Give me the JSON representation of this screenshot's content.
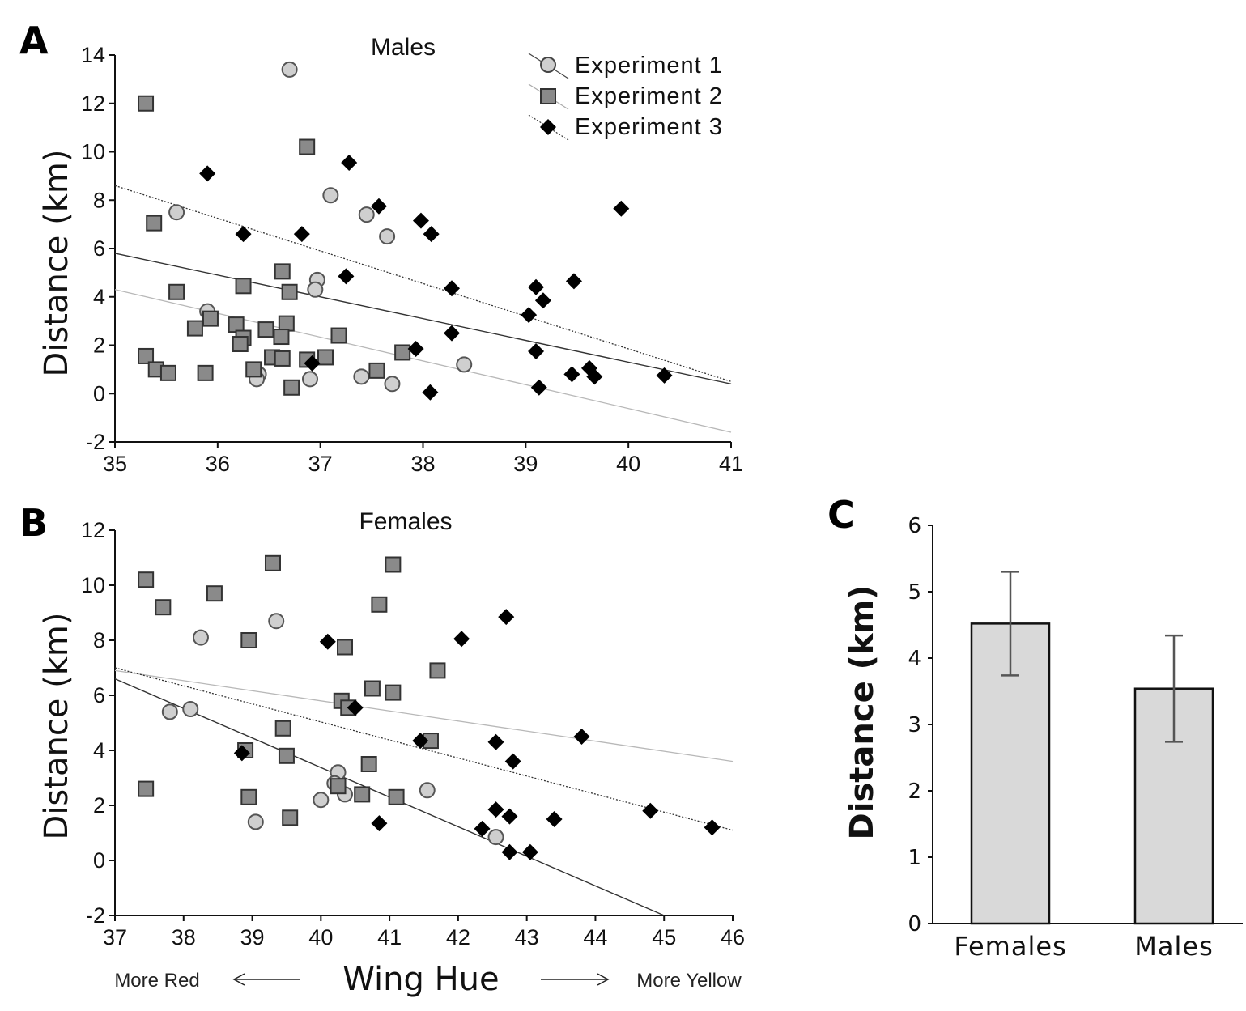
{
  "chart_data": [
    {
      "panel": "A",
      "type": "scatter",
      "title": "Males",
      "xlabel": "",
      "ylabel": "Distance (km)",
      "xlim": [
        35,
        41
      ],
      "ylim": [
        -2,
        14
      ],
      "xticks": [
        35,
        36,
        37,
        38,
        39,
        40,
        41
      ],
      "yticks": [
        -2,
        0,
        2,
        4,
        6,
        8,
        10,
        12,
        14
      ],
      "legend_placement": "top-right",
      "series": [
        {
          "name": "Experiment 1",
          "marker": "circle",
          "color": "#cfcfcf",
          "points": [
            [
              36.7,
              13.4
            ],
            [
              35.6,
              7.5
            ],
            [
              37.1,
              8.2
            ],
            [
              37.45,
              7.4
            ],
            [
              37.65,
              6.5
            ],
            [
              36.97,
              4.7
            ],
            [
              36.95,
              4.3
            ],
            [
              35.9,
              3.4
            ],
            [
              36.4,
              0.8
            ],
            [
              36.38,
              0.6
            ],
            [
              36.9,
              0.6
            ],
            [
              37.4,
              0.7
            ],
            [
              37.7,
              0.4
            ],
            [
              38.4,
              1.2
            ]
          ]
        },
        {
          "name": "Experiment 2",
          "marker": "square",
          "color": "#8a8a8a",
          "points": [
            [
              35.3,
              12.0
            ],
            [
              36.87,
              10.2
            ],
            [
              35.38,
              7.05
            ],
            [
              36.63,
              5.05
            ],
            [
              35.6,
              4.2
            ],
            [
              36.25,
              4.45
            ],
            [
              36.7,
              4.2
            ],
            [
              35.93,
              3.1
            ],
            [
              35.78,
              2.7
            ],
            [
              36.18,
              2.85
            ],
            [
              36.25,
              2.3
            ],
            [
              36.22,
              2.05
            ],
            [
              36.47,
              2.65
            ],
            [
              36.67,
              2.9
            ],
            [
              36.62,
              2.35
            ],
            [
              37.18,
              2.4
            ],
            [
              35.3,
              1.55
            ],
            [
              35.4,
              1.0
            ],
            [
              35.52,
              0.85
            ],
            [
              35.88,
              0.85
            ],
            [
              36.35,
              1.0
            ],
            [
              36.53,
              1.5
            ],
            [
              36.63,
              1.45
            ],
            [
              36.87,
              1.4
            ],
            [
              37.05,
              1.5
            ],
            [
              37.8,
              1.7
            ],
            [
              37.55,
              0.95
            ],
            [
              36.72,
              0.25
            ]
          ]
        },
        {
          "name": "Experiment 3",
          "marker": "diamond",
          "color": "#000000",
          "points": [
            [
              35.9,
              9.1
            ],
            [
              37.28,
              9.55
            ],
            [
              37.57,
              7.75
            ],
            [
              39.93,
              7.65
            ],
            [
              37.98,
              7.15
            ],
            [
              38.08,
              6.6
            ],
            [
              36.25,
              6.6
            ],
            [
              36.82,
              6.6
            ],
            [
              37.25,
              4.85
            ],
            [
              38.28,
              4.35
            ],
            [
              39.1,
              4.4
            ],
            [
              39.47,
              4.65
            ],
            [
              39.17,
              3.85
            ],
            [
              39.03,
              3.25
            ],
            [
              38.28,
              2.5
            ],
            [
              37.93,
              1.85
            ],
            [
              39.1,
              1.75
            ],
            [
              36.92,
              1.25
            ],
            [
              39.62,
              1.05
            ],
            [
              39.45,
              0.8
            ],
            [
              39.67,
              0.7
            ],
            [
              40.35,
              0.75
            ],
            [
              39.13,
              0.25
            ],
            [
              38.07,
              0.05
            ]
          ]
        }
      ],
      "fit_lines": [
        {
          "name": "Experiment 1",
          "style": "light-gray",
          "x": [
            35,
            41
          ],
          "y": [
            4.3,
            -1.6
          ]
        },
        {
          "name": "Experiment 2",
          "style": "solid",
          "x": [
            35,
            41
          ],
          "y": [
            5.8,
            0.4
          ]
        },
        {
          "name": "Experiment 3",
          "style": "dotted",
          "x": [
            35,
            41
          ],
          "y": [
            8.6,
            0.5
          ]
        }
      ]
    },
    {
      "panel": "B",
      "type": "scatter",
      "title": "Females",
      "xlabel": "Wing Hue",
      "ylabel": "Distance (km)",
      "xlim": [
        37,
        46
      ],
      "ylim": [
        -2,
        12
      ],
      "xticks": [
        37,
        38,
        39,
        40,
        41,
        42,
        43,
        44,
        45,
        46
      ],
      "yticks": [
        -2,
        0,
        2,
        4,
        6,
        8,
        10,
        12
      ],
      "axis_annotations": {
        "left": "More Red",
        "right": "More Yellow"
      },
      "series": [
        {
          "name": "Experiment 1",
          "marker": "circle",
          "color": "#cfcfcf",
          "points": [
            [
              39.35,
              8.7
            ],
            [
              38.25,
              8.1
            ],
            [
              37.8,
              5.4
            ],
            [
              38.1,
              5.5
            ],
            [
              40.25,
              3.2
            ],
            [
              40.2,
              2.8
            ],
            [
              40.35,
              2.4
            ],
            [
              40.0,
              2.2
            ],
            [
              39.05,
              1.4
            ],
            [
              41.55,
              2.55
            ],
            [
              42.55,
              0.85
            ]
          ]
        },
        {
          "name": "Experiment 2",
          "marker": "square",
          "color": "#8a8a8a",
          "points": [
            [
              39.3,
              10.8
            ],
            [
              41.05,
              10.75
            ],
            [
              37.45,
              10.2
            ],
            [
              37.7,
              9.2
            ],
            [
              38.45,
              9.7
            ],
            [
              40.85,
              9.3
            ],
            [
              38.95,
              8.0
            ],
            [
              40.35,
              7.75
            ],
            [
              41.7,
              6.9
            ],
            [
              40.75,
              6.25
            ],
            [
              41.05,
              6.1
            ],
            [
              40.3,
              5.8
            ],
            [
              40.4,
              5.55
            ],
            [
              39.45,
              4.8
            ],
            [
              41.6,
              4.35
            ],
            [
              38.9,
              4.0
            ],
            [
              39.5,
              3.8
            ],
            [
              40.7,
              3.5
            ],
            [
              40.25,
              2.7
            ],
            [
              40.6,
              2.4
            ],
            [
              38.95,
              2.3
            ],
            [
              41.1,
              2.3
            ],
            [
              39.55,
              1.55
            ],
            [
              37.45,
              2.6
            ]
          ]
        },
        {
          "name": "Experiment 3",
          "marker": "diamond",
          "color": "#000000",
          "points": [
            [
              42.7,
              8.85
            ],
            [
              42.05,
              8.05
            ],
            [
              40.1,
              7.95
            ],
            [
              40.5,
              5.55
            ],
            [
              41.45,
              4.35
            ],
            [
              42.55,
              4.3
            ],
            [
              43.8,
              4.5
            ],
            [
              38.85,
              3.9
            ],
            [
              42.8,
              3.6
            ],
            [
              42.55,
              1.85
            ],
            [
              42.75,
              1.6
            ],
            [
              43.4,
              1.5
            ],
            [
              44.8,
              1.8
            ],
            [
              45.7,
              1.2
            ],
            [
              40.85,
              1.35
            ],
            [
              42.35,
              1.15
            ],
            [
              42.75,
              0.3
            ],
            [
              43.05,
              0.3
            ]
          ]
        }
      ],
      "fit_lines": [
        {
          "name": "Experiment 1",
          "style": "solid",
          "x": [
            37,
            45
          ],
          "y": [
            6.6,
            -2.0
          ]
        },
        {
          "name": "Experiment 2",
          "style": "light-gray",
          "x": [
            37,
            46
          ],
          "y": [
            6.9,
            3.6
          ]
        },
        {
          "name": "Experiment 3",
          "style": "dotted",
          "x": [
            37,
            46
          ],
          "y": [
            7.0,
            1.1
          ]
        }
      ]
    },
    {
      "panel": "C",
      "type": "bar",
      "title": "",
      "xlabel": "",
      "ylabel": "Distance (km)",
      "ylim": [
        0,
        6
      ],
      "yticks": [
        0,
        1,
        2,
        3,
        4,
        5,
        6
      ],
      "categories": [
        "Females",
        "Males"
      ],
      "values": [
        4.52,
        3.54
      ],
      "error": [
        0.78,
        0.8
      ],
      "color": "#d9d9d9"
    }
  ]
}
